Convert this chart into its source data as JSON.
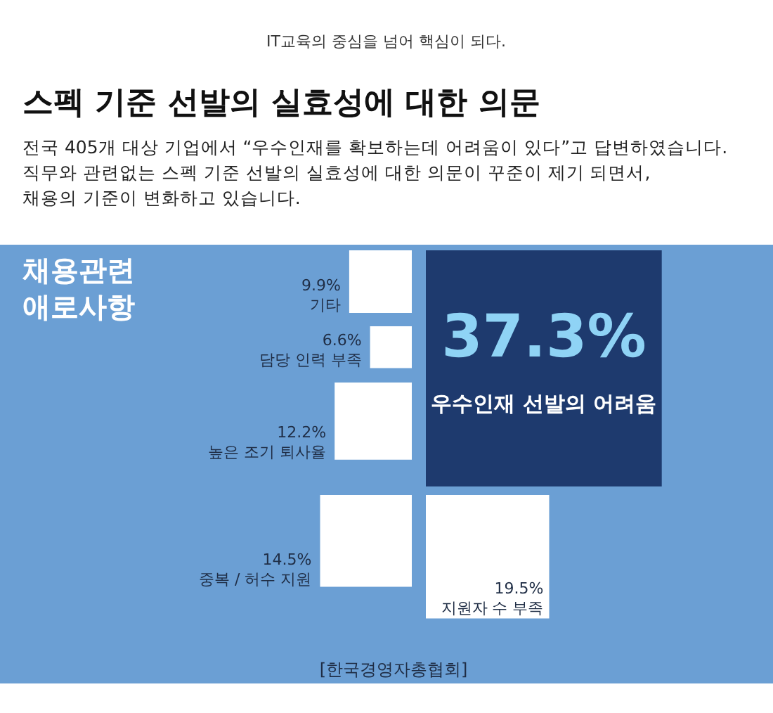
{
  "chart_data": {
    "type": "other",
    "title": "스펙 기준 선발의 실효성에 대한 의문",
    "subtitle": "전국 405개 대상 기업에서 “우수인재를 확보하는데 어려움이 있다”고 답변하였습니다.\n직무와 관련없는 스펙 기준 선발의 실효성에 대한 의문이 꾸준이 제기 되면서,\n채용의 기준이 변화하고 있습니다.",
    "legend_title": "채용관련 애로사항",
    "categories": [
      "기타",
      "담당 인력 부족",
      "높은 조기 퇴사율",
      "중복 / 허수 지원",
      "우수인재 선발의 어려움",
      "지원자 수 부족"
    ],
    "values": [
      9.9,
      6.6,
      12.2,
      14.5,
      37.3,
      19.5
    ],
    "value_labels": [
      "9.9%",
      "6.6%",
      "12.2%",
      "14.5%",
      "37.3%",
      "19.5%"
    ],
    "colors": [
      "#ffffff",
      "#ffffff",
      "#ffffff",
      "#ffffff",
      "#1e3a6e",
      "#ffffff"
    ],
    "annotations": [
      "IT교육의 중심을 넘어 핵심이 되다.",
      "[한국경영자총협회]"
    ]
  }
}
